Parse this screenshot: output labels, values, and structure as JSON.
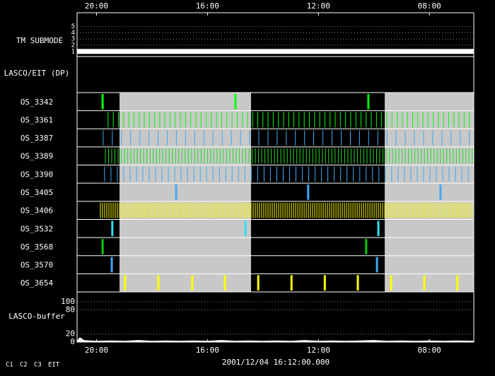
{
  "chart_data": {
    "type": "timeline",
    "xlim": [
      20.7,
      6.4
    ],
    "xticks": [
      {
        "value": 20,
        "label": "20:00"
      },
      {
        "value": 16,
        "label": "16:00"
      },
      {
        "value": 12,
        "label": "12:00"
      },
      {
        "value": 8,
        "label": "08:00"
      }
    ],
    "shaded": [
      [
        19.17,
        14.43
      ],
      [
        9.61,
        6.4
      ]
    ],
    "submode": {
      "label": "TM SUBMODE",
      "ylim": [
        0.3,
        7.2
      ],
      "yticks": [
        1,
        2,
        3,
        4,
        5
      ],
      "x": [
        20.7,
        6.4
      ],
      "values": [
        1,
        1
      ]
    },
    "dp": {
      "label": "LASCO/EIT (DP)"
    },
    "series": [
      {
        "name": "OS_3342",
        "color": "#00ff00",
        "x": [
          19.78,
          14.99,
          10.2
        ]
      },
      {
        "name": "OS_3361",
        "color": "#00ff00",
        "start": 19.58,
        "end": 6.45,
        "step": 0.186
      },
      {
        "name": "OS_3387",
        "color": "#3fa9f5",
        "start": 19.76,
        "end": 6.45,
        "step": 0.33
      },
      {
        "name": "OS_3389",
        "color": "#22dd22",
        "start": 19.68,
        "end": 6.45,
        "step": 0.115
      },
      {
        "name": "OS_3390",
        "color": "#3fa9f5",
        "start": 19.71,
        "end": 6.45,
        "step": 0.23
      },
      {
        "name": "OS_3405",
        "color": "#3fa9f5",
        "x": [
          17.13,
          12.37,
          7.6
        ]
      },
      {
        "name": "OS_3406",
        "color": "#ffff00",
        "start": 19.86,
        "end": 6.45,
        "step": 0.0765
      },
      {
        "name": "OS_3532",
        "color": "#33ddee",
        "x": [
          19.43,
          14.63,
          9.84
        ]
      },
      {
        "name": "OS_3568",
        "color": "#00cc00",
        "x": [
          19.78,
          10.28
        ]
      },
      {
        "name": "OS_3570",
        "color": "#3fa9f5",
        "x": [
          19.45,
          9.89
        ]
      },
      {
        "name": "OS_3654",
        "color": "#ffff00",
        "x": [
          18.97,
          17.77,
          16.55,
          15.37,
          14.17,
          12.97,
          11.77,
          10.58,
          9.38,
          8.18,
          6.99
        ]
      }
    ],
    "buffer": {
      "label": "LASCO-buffer",
      "ylim": [
        0,
        124.5
      ],
      "yticks": [
        0,
        20,
        80,
        100
      ],
      "x": [
        20.7,
        20.6,
        20.45,
        20.0,
        19.5,
        19.0,
        18.5,
        18.0,
        17.5,
        17.0,
        16.5,
        16.0,
        15.5,
        15.0,
        14.5,
        14.0,
        13.5,
        13.0,
        12.5,
        12.0,
        11.5,
        11.0,
        10.5,
        10.0,
        9.5,
        9.0,
        8.5,
        8.0,
        7.5,
        7.0,
        6.4
      ],
      "values": [
        4,
        12,
        5,
        3,
        4,
        3,
        5,
        3,
        4,
        3,
        4,
        3,
        5,
        3,
        4,
        3,
        4,
        3,
        5,
        3,
        4,
        3,
        4,
        5,
        3,
        4,
        3,
        4,
        3,
        4,
        3
      ]
    },
    "footer": "2001/12/04 16:12:00.000",
    "legend": [
      {
        "name": "C1",
        "color": "#ff2020"
      },
      {
        "name": "C2",
        "color": "#00ff00"
      },
      {
        "name": "C3",
        "color": "#ffffcc"
      },
      {
        "name": "EIT",
        "color": "#ffffff"
      }
    ]
  }
}
